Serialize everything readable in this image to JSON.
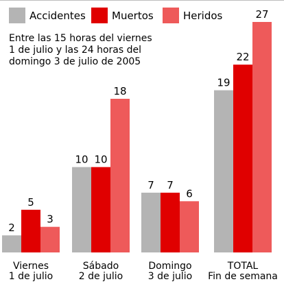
{
  "chart_data": {
    "type": "bar",
    "subtitle_lines": [
      "Entre las 15 horas del viernes",
      "1 de julio y las 24 horas del",
      "domingo 3 de julio de 2005"
    ],
    "categories": [
      [
        "Viernes",
        "1 de julio"
      ],
      [
        "Sábado",
        "2 de julio"
      ],
      [
        "Domingo",
        "3 de julio"
      ],
      [
        "TOTAL",
        "Fin de semana"
      ]
    ],
    "series": [
      {
        "name": "Accidentes",
        "values": [
          2,
          10,
          7,
          19
        ],
        "color": "#b4b4b4"
      },
      {
        "name": "Muertos",
        "values": [
          5,
          10,
          7,
          22
        ],
        "color": "#e00000"
      },
      {
        "name": "Heridos",
        "values": [
          3,
          18,
          6,
          27
        ],
        "color": "#ee5a5a"
      }
    ],
    "ylim": [
      0,
      27
    ],
    "grid": false,
    "legend_position": "top"
  }
}
